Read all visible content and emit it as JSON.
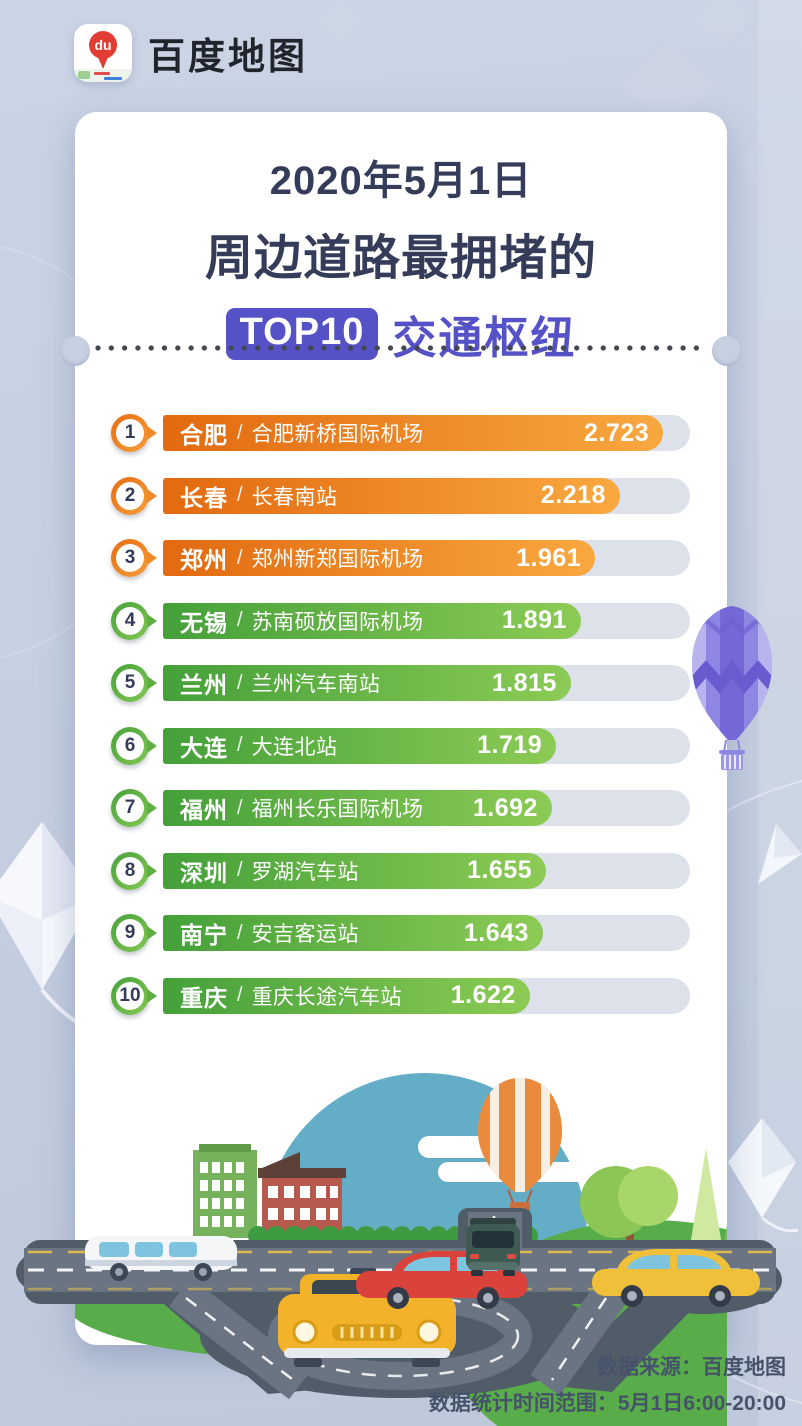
{
  "brand": {
    "icon_text": "du",
    "name": "百度地图"
  },
  "title": {
    "line1": "2020年5月1日",
    "line2_pre": "周边道路",
    "line2_bold": "最拥堵",
    "line2_post": "的",
    "top_badge": "TOP10",
    "line3": "交通枢纽"
  },
  "ranking": {
    "rows": [
      {
        "rank": "1",
        "city": "合肥",
        "sep": "/",
        "hub": "合肥新桥国际机场",
        "value": "2.723",
        "theme": "orange",
        "bar_pct": 94.9
      },
      {
        "rank": "2",
        "city": "长春",
        "sep": "/",
        "hub": "长春南站",
        "value": "2.218",
        "theme": "orange",
        "bar_pct": 86.7
      },
      {
        "rank": "3",
        "city": "郑州",
        "sep": "/",
        "hub": "郑州新郑国际机场",
        "value": "1.961",
        "theme": "orange",
        "bar_pct": 82.0
      },
      {
        "rank": "4",
        "city": "无锡",
        "sep": "/",
        "hub": "苏南硕放国际机场",
        "value": "1.891",
        "theme": "green",
        "bar_pct": 79.3
      },
      {
        "rank": "5",
        "city": "兰州",
        "sep": "/",
        "hub": "兰州汽车南站",
        "value": "1.815",
        "theme": "green",
        "bar_pct": 77.4
      },
      {
        "rank": "6",
        "city": "大连",
        "sep": "/",
        "hub": "大连北站",
        "value": "1.719",
        "theme": "green",
        "bar_pct": 74.6
      },
      {
        "rank": "7",
        "city": "福州",
        "sep": "/",
        "hub": "福州长乐国际机场",
        "value": "1.692",
        "theme": "green",
        "bar_pct": 73.8
      },
      {
        "rank": "8",
        "city": "深圳",
        "sep": "/",
        "hub": "罗湖汽车站",
        "value": "1.655",
        "theme": "green",
        "bar_pct": 72.7
      },
      {
        "rank": "9",
        "city": "南宁",
        "sep": "/",
        "hub": "安吉客运站",
        "value": "1.643",
        "theme": "green",
        "bar_pct": 72.1
      },
      {
        "rank": "10",
        "city": "重庆",
        "sep": "/",
        "hub": "重庆长途汽车站",
        "value": "1.622",
        "theme": "green",
        "bar_pct": 69.6
      }
    ]
  },
  "footer": {
    "source": "数据来源：百度地图",
    "range": "数据统计时间范围：5月1日6:00-20:00"
  },
  "colors": {
    "background": "#c6d0e1",
    "card": "#ffffff",
    "title_navy": "#353c59",
    "accent_purple": "#5551c7",
    "bar_orange_start": "#e2690f",
    "bar_orange_end": "#f9a840",
    "bar_green_start": "#45a03a",
    "bar_green_end": "#8ccb55",
    "bar_track": "#dde1ea",
    "footer_text": "#46526a"
  },
  "chart_data": {
    "type": "bar",
    "orientation": "horizontal",
    "title": "2020年5月1日 周边道路最拥堵的 TOP10 交通枢纽",
    "categories": [
      "合肥 / 合肥新桥国际机场",
      "长春 / 长春南站",
      "郑州 / 郑州新郑国际机场",
      "无锡 / 苏南硕放国际机场",
      "兰州 / 兰州汽车南站",
      "大连 / 大连北站",
      "福州 / 福州长乐国际机场",
      "深圳 / 罗湖汽车站",
      "南宁 / 安吉客运站",
      "重庆 / 重庆长途汽车站"
    ],
    "values": [
      2.723,
      2.218,
      1.961,
      1.891,
      1.815,
      1.719,
      1.692,
      1.655,
      1.643,
      1.622
    ],
    "ranks": [
      1,
      2,
      3,
      4,
      5,
      6,
      7,
      8,
      9,
      10
    ],
    "bar_colors": [
      "orange",
      "orange",
      "orange",
      "green",
      "green",
      "green",
      "green",
      "green",
      "green",
      "green"
    ],
    "value_labels_on_bars": true,
    "legend": "none",
    "xlabel": "",
    "ylabel": "",
    "source_note": "数据来源：百度地图",
    "time_range_note": "数据统计时间范围：5月1日6:00-20:00"
  }
}
